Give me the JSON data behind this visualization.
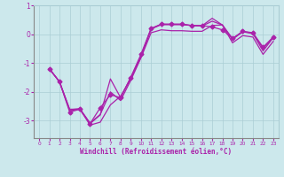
{
  "background_color": "#cce8ec",
  "grid_color": "#aacdd4",
  "line_color": "#aa22aa",
  "xlabel": "Windchill (Refroidissement éolien,°C)",
  "xlim": [
    -0.5,
    23.5
  ],
  "ylim": [
    -3.6,
    0.7
  ],
  "yticks": [
    1,
    0,
    -1,
    -2,
    -3
  ],
  "xticks": [
    0,
    1,
    2,
    3,
    4,
    5,
    6,
    7,
    8,
    9,
    10,
    11,
    12,
    13,
    14,
    15,
    16,
    17,
    18,
    19,
    20,
    21,
    22,
    23
  ],
  "s1_x": [
    1,
    2,
    3,
    4,
    5,
    6,
    7,
    8,
    9,
    10,
    11,
    12,
    13,
    14,
    15,
    16,
    17,
    18,
    19,
    20,
    21,
    22,
    23
  ],
  "s1_y": [
    -1.2,
    -1.65,
    -2.7,
    -2.6,
    -3.1,
    -2.55,
    -2.1,
    -2.2,
    -1.5,
    -0.7,
    0.2,
    0.35,
    0.35,
    0.35,
    0.3,
    0.3,
    0.25,
    0.15,
    -0.15,
    0.1,
    0.05,
    -0.45,
    -0.1
  ],
  "s2_x": [
    1,
    2,
    3,
    4,
    5,
    6,
    7,
    8,
    9,
    10,
    11,
    12,
    13,
    14,
    15,
    16,
    17,
    18,
    19,
    20,
    21,
    22,
    23
  ],
  "s2_y": [
    -1.2,
    -1.65,
    -2.6,
    -2.6,
    -3.15,
    -3.05,
    -2.45,
    -2.15,
    -1.55,
    -0.8,
    0.18,
    0.33,
    0.33,
    0.33,
    0.3,
    0.28,
    0.45,
    0.32,
    -0.18,
    0.08,
    0.02,
    -0.58,
    -0.12
  ],
  "s3_x": [
    1,
    2,
    3,
    4,
    5,
    6,
    7,
    8,
    9,
    10,
    11,
    12,
    13,
    14,
    15,
    16,
    17,
    18,
    19,
    20,
    21,
    22,
    23
  ],
  "s3_y": [
    -1.2,
    -1.65,
    -2.65,
    -2.6,
    -3.1,
    -2.8,
    -1.55,
    -2.2,
    -1.5,
    -0.75,
    0.19,
    0.34,
    0.34,
    0.34,
    0.3,
    0.29,
    0.55,
    0.32,
    -0.15,
    0.09,
    0.04,
    -0.5,
    -0.1
  ],
  "s4_x": [
    1,
    2,
    3,
    4,
    5,
    6,
    7,
    8,
    9,
    10,
    11,
    12,
    13,
    14,
    15,
    16,
    17,
    18,
    19,
    20,
    21,
    22,
    23
  ],
  "s4_y": [
    -1.2,
    -1.65,
    -2.62,
    -2.58,
    -3.08,
    -2.78,
    -2.0,
    -2.3,
    -1.6,
    -0.82,
    0.05,
    0.15,
    0.12,
    0.12,
    0.1,
    0.1,
    0.3,
    0.32,
    -0.3,
    -0.05,
    -0.1,
    -0.7,
    -0.25
  ]
}
